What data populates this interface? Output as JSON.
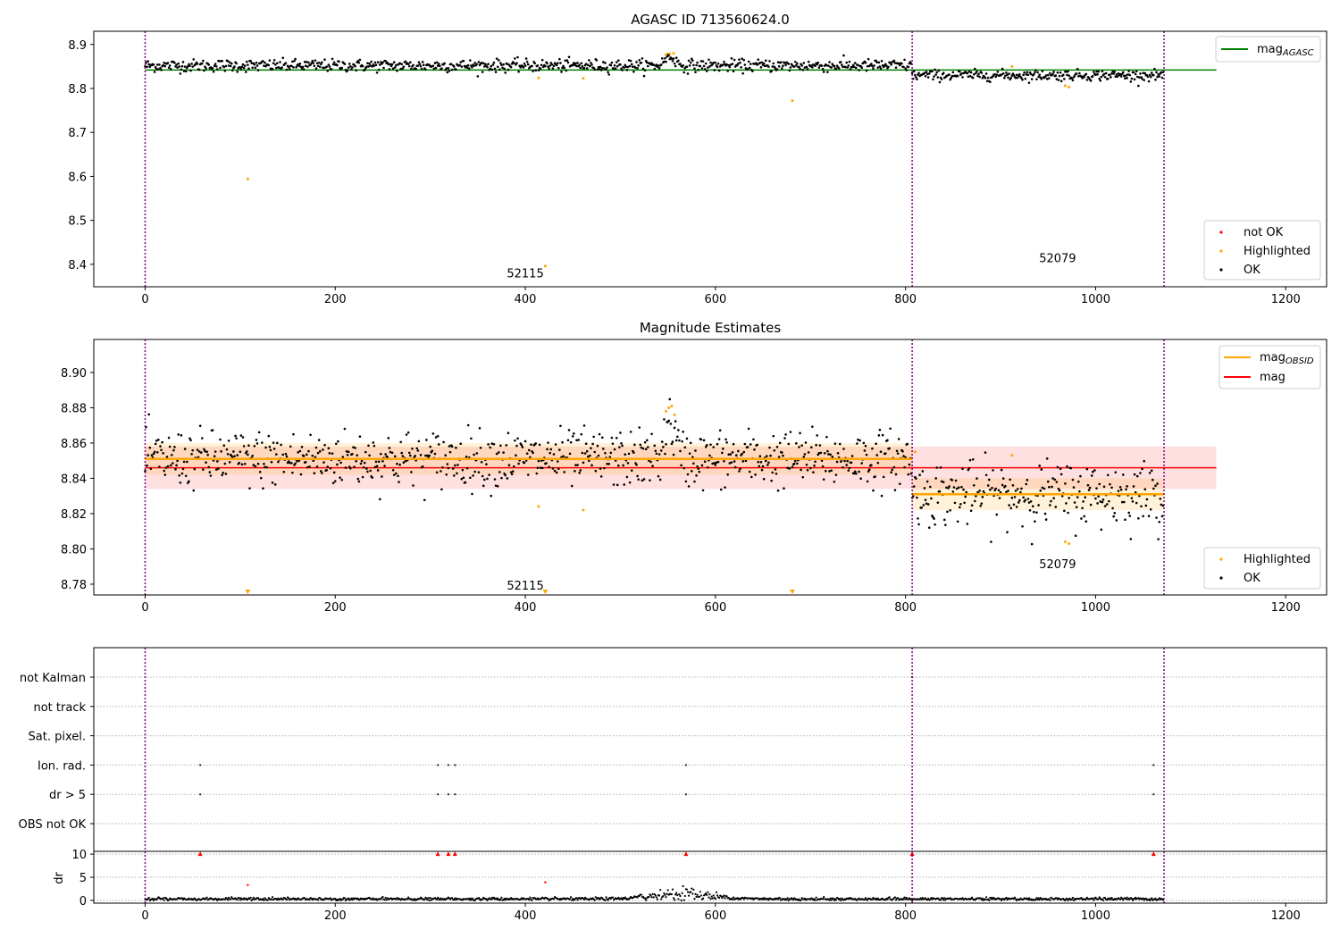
{
  "chart_data": [
    {
      "type": "scatter",
      "title": "AGASC ID 713560624.0",
      "xlim": [
        -54,
        1243
      ],
      "ylim": [
        8.349,
        8.93
      ],
      "xticks": [
        0,
        200,
        400,
        600,
        800,
        1000,
        1200
      ],
      "yticks": [
        8.4,
        8.5,
        8.6,
        8.7,
        8.8,
        8.9
      ],
      "ytick_fmt": 1,
      "segments": [
        {
          "start": 0,
          "end": 807,
          "mean": 8.852,
          "sd": 0.007,
          "label": "52115",
          "label_x": 400,
          "label_y": 8.37
        },
        {
          "start": 807,
          "end": 1072,
          "mean": 8.83,
          "sd": 0.006,
          "label": "52079",
          "label_x": 960,
          "label_y": 8.405
        }
      ],
      "vlines": [
        0,
        807,
        1072
      ],
      "lines": [
        {
          "name": "mag_AGASC",
          "y": 8.842,
          "x": [
            0,
            1127
          ],
          "color": "#008000"
        }
      ],
      "highlighted": [
        [
          108,
          8.594
        ],
        [
          414,
          8.824
        ],
        [
          421,
          8.396
        ],
        [
          461,
          8.823
        ],
        [
          681,
          8.772
        ],
        [
          548,
          8.877
        ],
        [
          552,
          8.879
        ],
        [
          556,
          8.88
        ],
        [
          912,
          8.85
        ],
        [
          968,
          8.806
        ],
        [
          972,
          8.803
        ]
      ],
      "legend": [
        {
          "label": "mag",
          "sub": "AGASC",
          "type": "line",
          "color": "#008000",
          "placement": "top-right"
        }
      ],
      "legend2": [
        {
          "label": "not OK",
          "color": "#ff0000"
        },
        {
          "label": "Highlighted",
          "color": "#ffa500"
        },
        {
          "label": "OK",
          "color": "#000000"
        }
      ]
    },
    {
      "type": "scatter",
      "title": "Magnitude Estimates",
      "xlim": [
        -54,
        1243
      ],
      "ylim": [
        8.7739,
        8.9187
      ],
      "xticks": [
        0,
        200,
        400,
        600,
        800,
        1000,
        1200
      ],
      "yticks": [
        8.78,
        8.8,
        8.82,
        8.84,
        8.86,
        8.88,
        8.9
      ],
      "ytick_fmt": 2,
      "segments": [
        {
          "start": 0,
          "end": 807,
          "mean": 8.851,
          "sd": 0.008,
          "band": [
            8.842,
            8.86
          ],
          "label": "52115",
          "label_x": 400,
          "label_y": 8.777
        },
        {
          "start": 807,
          "end": 1072,
          "mean": 8.831,
          "sd": 0.009,
          "band": [
            8.822,
            8.84
          ],
          "label": "52079",
          "label_x": 960,
          "label_y": 8.789
        }
      ],
      "vlines": [
        0,
        807,
        1072
      ],
      "mag": {
        "y": 8.846,
        "band": [
          8.834,
          8.858
        ],
        "x": [
          0,
          1127
        ]
      },
      "highlighted": [
        [
          414,
          8.824
        ],
        [
          461,
          8.822
        ],
        [
          548,
          8.878
        ],
        [
          551,
          8.88
        ],
        [
          554,
          8.881
        ],
        [
          557,
          8.876
        ],
        [
          810,
          8.855
        ],
        [
          912,
          8.853
        ],
        [
          968,
          8.804
        ],
        [
          972,
          8.803
        ]
      ],
      "below_range": [
        108,
        421,
        681
      ],
      "legend": [
        {
          "label": "mag",
          "sub": "OBSID",
          "color": "#ffa500"
        },
        {
          "label": "mag",
          "sub": "",
          "color": "#ff0000"
        }
      ],
      "legend2": [
        {
          "label": "Highlighted",
          "color": "#ffa500"
        },
        {
          "label": "OK",
          "color": "#000000"
        }
      ]
    },
    {
      "type": "scatter",
      "categories": [
        "not Kalman",
        "not track",
        "Sat. pixel.",
        "Ion. rad.",
        "dr > 5",
        "OBS not OK"
      ],
      "flags": {
        "not Kalman": [
          807
        ],
        "Ion. rad.": [
          58,
          308,
          319,
          326,
          569,
          1061
        ],
        "dr > 5": [
          58,
          308,
          319,
          326,
          569,
          1061
        ]
      },
      "xticks": [
        0,
        200,
        400,
        600,
        800,
        1000,
        1200
      ],
      "vlines": [
        0,
        807,
        1072
      ]
    },
    {
      "type": "line",
      "ylabel": "dr",
      "ylim": [
        -0.6,
        10.6
      ],
      "yticks": [
        0,
        5,
        10
      ],
      "clipped": [
        58,
        308,
        319,
        326,
        569,
        807,
        1061
      ],
      "red_points": [
        [
          108,
          3.3
        ],
        [
          421,
          3.9
        ]
      ],
      "baseline": 0.3,
      "bump": {
        "center": 565,
        "width": 30,
        "height": 1.6
      },
      "xticks": [
        0,
        200,
        400,
        600,
        800,
        1000,
        1200
      ]
    }
  ]
}
